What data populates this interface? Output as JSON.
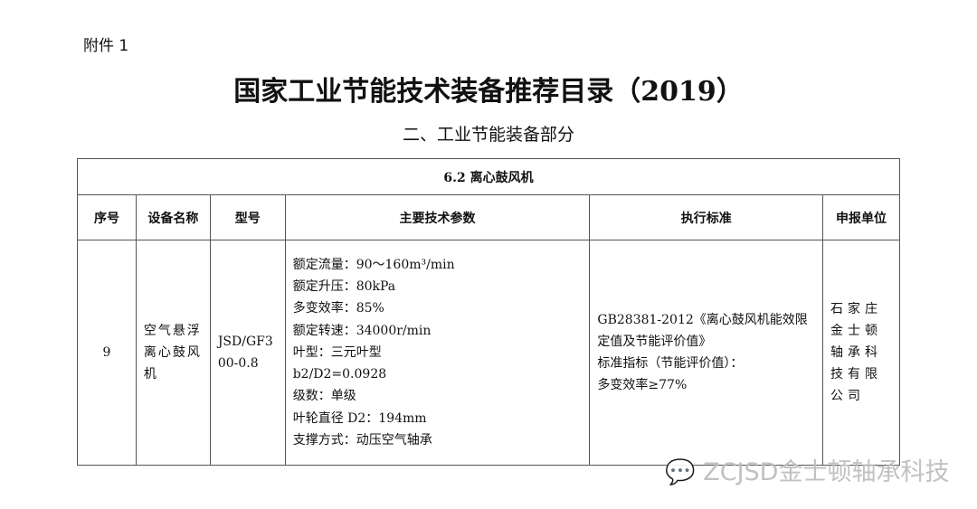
{
  "attachment": "附件 1",
  "title": "国家工业节能技术装备推荐目录（2019）",
  "subtitle": "二、工业节能装备部分",
  "table": {
    "section": "6.2 离心鼓风机",
    "headers": [
      "序号",
      "设备名称",
      "型号",
      "主要技术参数",
      "执行标准",
      "申报单位"
    ],
    "rows": [
      {
        "no": "9",
        "name": "空气悬浮离心鼓风机",
        "model": "JSD/GF300-0.8",
        "params": [
          "额定流量：90～160m³/min",
          "额定升压：80kPa",
          "多变效率：85%",
          "额定转速：34000r/min",
          "叶型：三元叶型",
          "b2/D2=0.0928",
          "级数：单级",
          "叶轮直径 D2：194mm",
          "支撑方式：动压空气轴承"
        ],
        "standard": [
          "GB28381-2012《离心鼓风机能效限定值及节能评价值》",
          "标准指标（节能评价值）：",
          "多变效率≥77%"
        ],
        "unit": "石家庄金士顿轴承科技有限公司"
      }
    ]
  },
  "watermark": "ZCJSD金士顿轴承科技"
}
